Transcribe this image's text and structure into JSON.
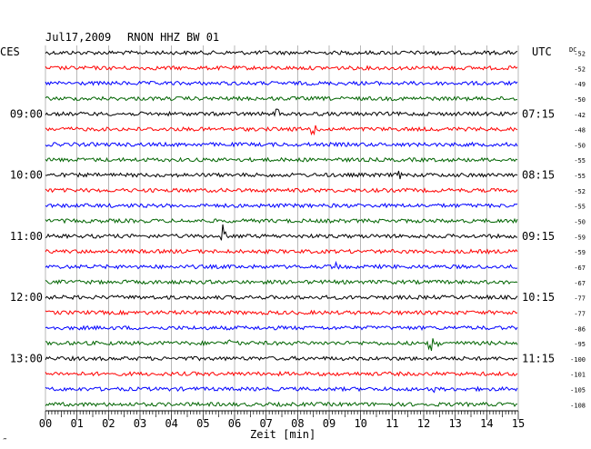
{
  "header": {
    "date": "Jul17,2009",
    "station": "RNON HHZ BW 01",
    "left_zone": "CES",
    "right_zone": "UTC",
    "dc_label": "DC"
  },
  "xaxis": {
    "label": "Zeit [min]",
    "ticks": [
      "00",
      "01",
      "02",
      "03",
      "04",
      "05",
      "06",
      "07",
      "08",
      "09",
      "10",
      "11",
      "12",
      "13",
      "14",
      "15"
    ]
  },
  "corner_mark": "‴",
  "colors": {
    "trace_cycle": [
      "#000000",
      "#ff0000",
      "#0000ff",
      "#006400"
    ],
    "grid": "#888888"
  },
  "chart_data": {
    "type": "line",
    "title": "Jul17,2009   RNON HHZ BW 01",
    "xlabel": "Zeit [min]",
    "xlim": [
      0,
      15
    ],
    "traces_per_hour": 4,
    "trace_minutes": 15,
    "left_hour_labels": [
      "09:00",
      "10:00",
      "11:00",
      "12:00",
      "13:00"
    ],
    "right_hour_labels": [
      "07:15",
      "08:15",
      "09:15",
      "10:15",
      "11:15"
    ],
    "dc_offsets": [
      -52,
      -52,
      -49,
      -50,
      -42,
      -48,
      -50,
      -55,
      -55,
      -52,
      -55,
      -50,
      -59,
      -59,
      -67,
      -67,
      -77,
      -77,
      -86,
      -95,
      -100,
      -101,
      -105,
      -108
    ],
    "events": [
      {
        "trace": 0,
        "minute": 12.2,
        "amp": 0.25
      },
      {
        "trace": 4,
        "minute": 7.3,
        "amp": 0.7
      },
      {
        "trace": 5,
        "minute": 8.4,
        "amp": 1.0
      },
      {
        "trace": 8,
        "minute": 11.2,
        "amp": 0.35
      },
      {
        "trace": 12,
        "minute": 5.6,
        "amp": 1.2
      },
      {
        "trace": 14,
        "minute": 9.2,
        "amp": 0.35
      },
      {
        "trace": 19,
        "minute": 5.8,
        "amp": 1.0
      },
      {
        "trace": 19,
        "minute": 12.2,
        "amp": 1.3
      },
      {
        "trace": 22,
        "minute": 12.2,
        "amp": 0.5
      }
    ]
  }
}
